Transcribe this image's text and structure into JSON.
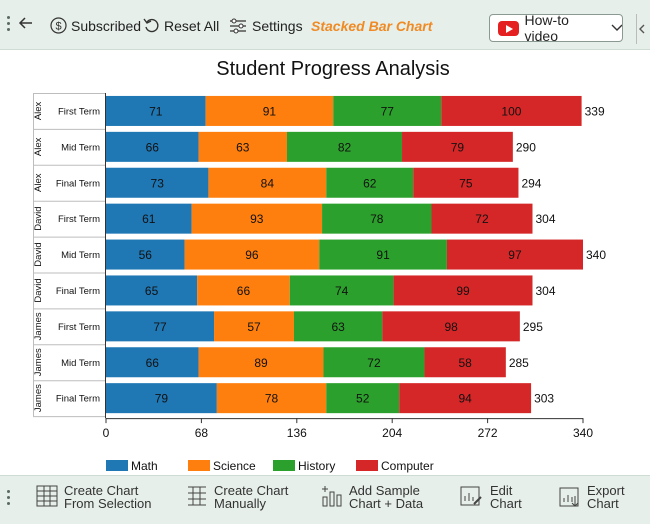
{
  "toolbar": {
    "subscribed_label": "Subscribed",
    "reset_label": "Reset All",
    "settings_label": "Settings",
    "chart_name": "Stacked Bar Chart",
    "howto_label": "How-to video"
  },
  "bottom_toolbar": {
    "create_selection": [
      "Create Chart",
      "From Selection"
    ],
    "create_manual": [
      "Create Chart",
      "Manually"
    ],
    "add_sample": [
      "Add Sample",
      "Chart + Data"
    ],
    "edit_chart": [
      "Edit",
      "Chart"
    ],
    "export_chart": [
      "Export",
      "Chart"
    ]
  },
  "colors": {
    "Math": "#1f77b4",
    "Science": "#ff7f0e",
    "History": "#2ca02c",
    "Computer": "#d62728"
  },
  "chart_data": {
    "type": "bar",
    "orientation": "horizontal",
    "stacked": true,
    "title": "Student Progress Analysis",
    "groups": [
      "Alex",
      "David",
      "James"
    ],
    "categories": [
      "First Term",
      "Mid Term",
      "Final Term",
      "First Term",
      "Mid Term",
      "Final Term",
      "First Term",
      "Mid Term",
      "Final Term"
    ],
    "category_groups": [
      "Alex",
      "Alex",
      "Alex",
      "David",
      "David",
      "David",
      "James",
      "James",
      "James"
    ],
    "series": [
      {
        "name": "Math",
        "values": [
          71,
          66,
          73,
          61,
          56,
          65,
          77,
          66,
          79
        ]
      },
      {
        "name": "Science",
        "values": [
          91,
          63,
          84,
          93,
          96,
          66,
          57,
          89,
          78
        ]
      },
      {
        "name": "History",
        "values": [
          77,
          82,
          62,
          78,
          91,
          74,
          63,
          72,
          52
        ]
      },
      {
        "name": "Computer",
        "values": [
          100,
          79,
          75,
          72,
          97,
          99,
          98,
          58,
          94
        ]
      }
    ],
    "totals": [
      339,
      290,
      294,
      304,
      340,
      304,
      295,
      285,
      303
    ],
    "xlim": [
      0,
      340
    ],
    "xticks": [
      0,
      68,
      136,
      204,
      272,
      340
    ],
    "legend_position": "bottom"
  }
}
